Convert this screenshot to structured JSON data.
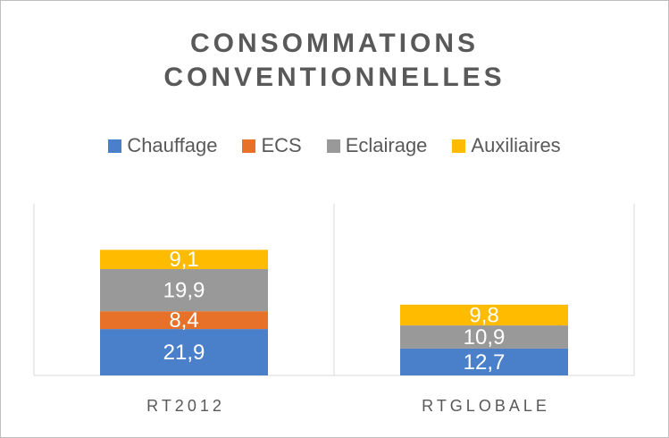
{
  "chart_data": {
    "type": "bar",
    "stacked": true,
    "title_lines": [
      "CONSOMMATIONS",
      "CONVENTIONNELLES"
    ],
    "categories": [
      "RT2012",
      "RTGLOBALE"
    ],
    "series": [
      {
        "name": "Chauffage",
        "color": "#4a7fc9",
        "values": [
          21.9,
          12.7
        ],
        "labels": [
          "21,9",
          "12,7"
        ]
      },
      {
        "name": "ECS",
        "color": "#e8712a",
        "values": [
          8.4,
          0
        ],
        "labels": [
          "8,4",
          ""
        ]
      },
      {
        "name": "Eclairage",
        "color": "#999999",
        "values": [
          19.9,
          10.9
        ],
        "labels": [
          "19,9",
          "10,9"
        ]
      },
      {
        "name": "Auxiliaires",
        "color": "#ffbb00",
        "values": [
          9.1,
          9.8
        ],
        "labels": [
          "9,1",
          "9,8"
        ]
      }
    ],
    "legend_position": "top",
    "grid": false
  }
}
